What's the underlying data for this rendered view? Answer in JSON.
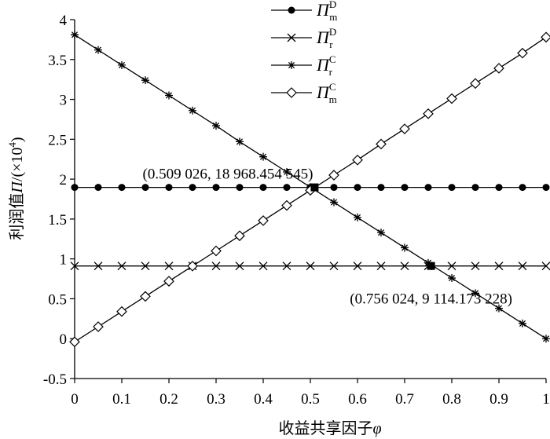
{
  "chart_data": {
    "type": "line",
    "xlabel_prefix": "收益共享因子",
    "xlabel_symbol": "φ",
    "ylabel_prefix": "利润值",
    "ylabel_symbol": "Π",
    "ylabel_unit_open": "/(×10",
    "ylabel_unit_exp": "4",
    "ylabel_unit_close": ")",
    "xlim": [
      0,
      1
    ],
    "ylim": [
      -0.5,
      4
    ],
    "x_ticks": [
      0,
      0.1,
      0.2,
      0.3,
      0.4,
      0.5,
      0.6,
      0.7,
      0.8,
      0.9,
      1
    ],
    "x_tick_labels": [
      "0",
      "0.1",
      "0.2",
      "0.3",
      "0.4",
      "0.5",
      "0.6",
      "0.7",
      "0.8",
      "0.9",
      "1"
    ],
    "y_ticks": [
      -0.5,
      0,
      0.5,
      1,
      1.5,
      2,
      2.5,
      3,
      3.5,
      4
    ],
    "y_tick_labels": [
      "-0.5",
      "0",
      "0.5",
      "1",
      "1.5",
      "2",
      "2.5",
      "3",
      "3.5",
      "4"
    ],
    "grid": false,
    "legend_position": "top-center",
    "x": [
      0,
      0.05,
      0.1,
      0.15,
      0.2,
      0.25,
      0.3,
      0.35,
      0.4,
      0.45,
      0.5,
      0.55,
      0.6,
      0.65,
      0.7,
      0.75,
      0.8,
      0.85,
      0.9,
      0.95,
      1
    ],
    "series": [
      {
        "base": "Π",
        "sup": "D",
        "sub": "m",
        "marker": "dot",
        "values": [
          1.897,
          1.897,
          1.897,
          1.897,
          1.897,
          1.897,
          1.897,
          1.897,
          1.897,
          1.897,
          1.897,
          1.897,
          1.897,
          1.897,
          1.897,
          1.897,
          1.897,
          1.897,
          1.897,
          1.897,
          1.897
        ]
      },
      {
        "base": "Π",
        "sup": "D",
        "sub": "r",
        "marker": "x",
        "values": [
          0.911,
          0.911,
          0.911,
          0.911,
          0.911,
          0.911,
          0.911,
          0.911,
          0.911,
          0.911,
          0.911,
          0.911,
          0.911,
          0.911,
          0.911,
          0.911,
          0.911,
          0.911,
          0.911,
          0.911,
          0.911
        ]
      },
      {
        "base": "Π",
        "sup": "C",
        "sub": "r",
        "marker": "star",
        "values": [
          3.81,
          3.62,
          3.43,
          3.24,
          3.05,
          2.86,
          2.67,
          2.47,
          2.28,
          2.09,
          1.9,
          1.71,
          1.52,
          1.33,
          1.14,
          0.95,
          0.76,
          0.57,
          0.38,
          0.19,
          0.0
        ]
      },
      {
        "base": "Π",
        "sup": "C",
        "sub": "m",
        "marker": "diamond",
        "values": [
          -0.04,
          0.15,
          0.34,
          0.53,
          0.72,
          0.91,
          1.1,
          1.29,
          1.48,
          1.67,
          1.86,
          2.05,
          2.24,
          2.44,
          2.63,
          2.82,
          3.01,
          3.2,
          3.39,
          3.58,
          3.78
        ]
      }
    ],
    "highlight_points": [
      {
        "x": 0.509026,
        "y": 1.8968,
        "label": "(0.509 026, 18 968.454 545)"
      },
      {
        "x": 0.756024,
        "y": 0.9114,
        "label": "(0.756 024, 9 114.173 228)"
      }
    ]
  }
}
